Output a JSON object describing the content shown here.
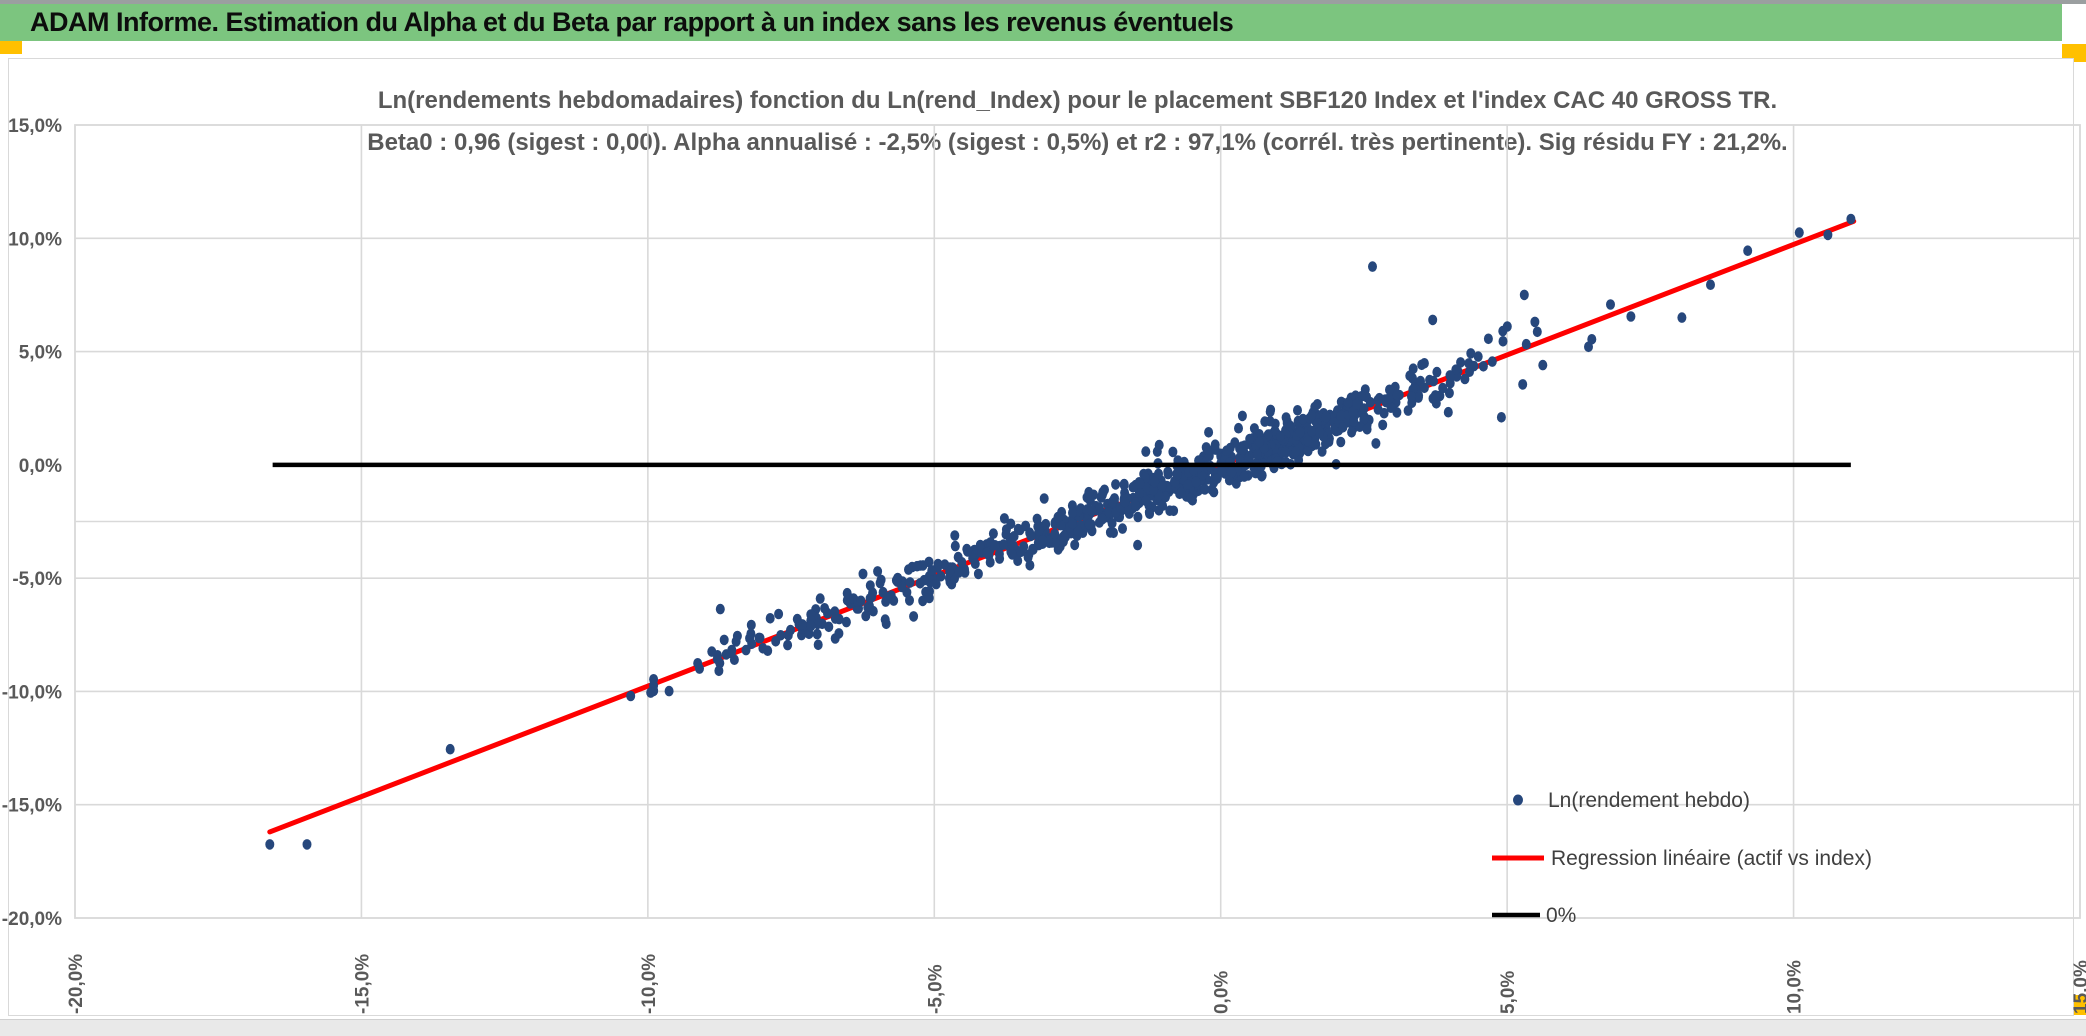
{
  "header": {
    "title": "ADAM Informe. Estimation du Alpha et du Beta par rapport à un index sans les revenus éventuels",
    "bg_color": "#7cc57f",
    "corner_color": "#ffc000"
  },
  "chart_data": {
    "type": "scatter",
    "title": "Ln(rendements hebdomadaires) fonction du Ln(rend_Index) pour le placement SBF120 Index et l'index CAC 40 GROSS TR.",
    "subtitle": "Beta0 : 0,96 (sigest : 0,00). Alpha annualisé : -2,5% (sigest : 0,5%) et r2 : 97,1% (corrél. très pertinente). Sig résidu FY : 21,2%.",
    "title_color": "#595959",
    "xlabel": "",
    "ylabel": "",
    "xlim": [
      -20,
      15
    ],
    "ylim": [
      -20,
      15
    ],
    "x_ticks": {
      "values": [
        -20,
        -15,
        -10,
        -5,
        0,
        5,
        10,
        15
      ],
      "labels": [
        "-20,0%",
        "-15,0%",
        "-10,0%",
        "-5,0%",
        "0,0%",
        "5,0%",
        "10,0%",
        "15,0%"
      ]
    },
    "y_ticks": {
      "values": [
        15,
        10,
        5,
        0,
        -5,
        -10,
        -15,
        -20
      ],
      "labels": [
        "15,0%",
        "10,0%",
        "5,0%",
        "0,0%",
        "-5,0%",
        "-10,0%",
        "-15,0%",
        "-20,0%"
      ]
    },
    "grid": {
      "color": "#d9d9d9",
      "vertical_values": [
        -15,
        -10,
        -5,
        0,
        5,
        10
      ],
      "horizontal_values": [
        10,
        5,
        -5,
        -10,
        -15
      ],
      "horizontal_minor_values": [
        -2.5
      ]
    },
    "stats": {
      "beta0": "0,96",
      "beta0_sigest": "0,00",
      "alpha_annualise": "-2,5%",
      "alpha_sigest": "0,5%",
      "r2": "97,1%",
      "sig_residu_fy": "21,2%"
    },
    "series": [
      {
        "name": "Ln(rendement hebdo)",
        "type": "scatter",
        "color": "#26477c",
        "marker_rx": 4.5,
        "marker_ry": 5.3,
        "regression": {
          "beta": 0.96,
          "alpha_weekly_pct": -0.05
        },
        "cloud": {
          "seed": 42,
          "n": 840,
          "components": [
            {
              "w": 0.54,
              "mu": 0.6,
              "sigma": 1.7
            },
            {
              "w": 0.26,
              "mu": -2.6,
              "sigma": 2.0
            },
            {
              "w": 0.14,
              "mu": -6.2,
              "sigma": 1.9
            }
          ],
          "uniform": {
            "w": 0.06,
            "min": -9.0,
            "max": 7.3
          },
          "x_clamp": [
            -9.9,
            7.5
          ],
          "resid_sigma": 0.5,
          "resid_wide_sigma": 1.1,
          "resid_wide_prob": 0.1,
          "resid_clamp": 2.3
        },
        "outlier_points": [
          [
            -16.6,
            -16.75
          ],
          [
            -15.95,
            -16.75
          ],
          [
            -13.45,
            -12.55
          ],
          [
            -10.3,
            -10.2
          ],
          [
            -9.95,
            -10.05
          ],
          [
            8.05,
            6.5
          ],
          [
            8.55,
            7.95
          ],
          [
            9.2,
            9.45
          ],
          [
            10.1,
            10.25
          ],
          [
            10.6,
            10.15
          ],
          [
            11.0,
            10.85
          ],
          [
            5.3,
            7.5
          ],
          [
            3.7,
            6.4
          ],
          [
            2.65,
            8.75
          ],
          [
            4.9,
            2.1
          ]
        ]
      },
      {
        "name": "Regression linéaire (actif vs index)",
        "type": "line",
        "color": "#fe0000",
        "width": 5,
        "points": [
          [
            -16.6,
            -16.2
          ],
          [
            11.05,
            10.75
          ]
        ]
      },
      {
        "name": "0%",
        "type": "line",
        "color": "#000000",
        "width": 4.5,
        "points": [
          [
            -16.55,
            0
          ],
          [
            11.0,
            0
          ]
        ]
      }
    ],
    "legend": {
      "position": "inside-bottom-right",
      "text_color": "#404040",
      "entries": [
        "Ln(rendement hebdo)",
        "Regression linéaire (actif vs index)",
        "0%"
      ]
    },
    "axis_text_color": "#595959"
  },
  "footer": {
    "strip_color": "#e9e9e9",
    "corner_color": "#ffc000"
  }
}
